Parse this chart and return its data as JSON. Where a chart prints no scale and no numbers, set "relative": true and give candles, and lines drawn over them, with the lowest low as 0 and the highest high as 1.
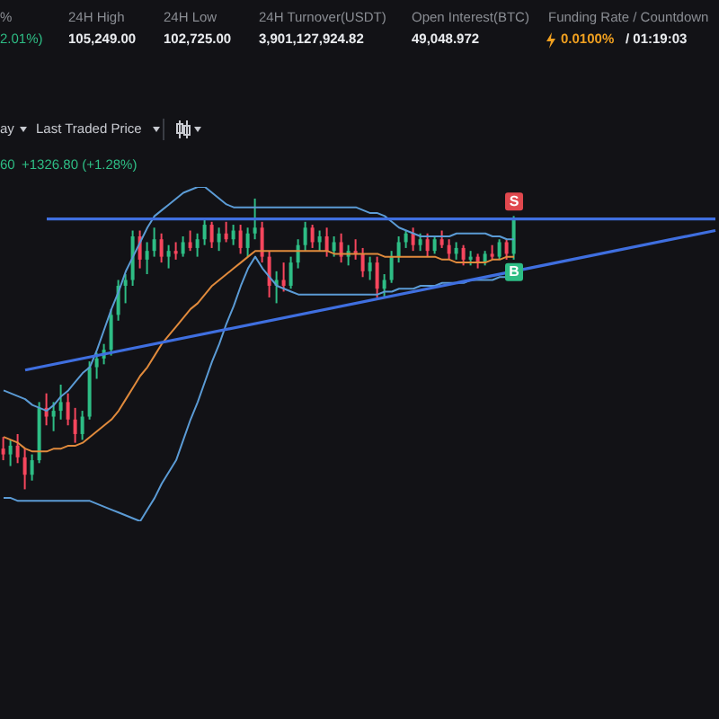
{
  "chart_data": {
    "type": "candlestick",
    "relative": true,
    "categories": [
      null,
      null,
      null,
      null,
      null,
      null,
      null,
      null,
      null,
      null,
      null,
      null,
      null,
      null,
      null,
      null,
      null,
      null,
      null,
      null,
      null,
      null,
      null,
      null,
      null,
      null,
      null,
      null,
      null,
      null,
      null,
      null,
      null,
      null,
      null,
      null,
      null,
      null,
      null,
      null,
      null,
      null,
      null,
      null,
      null,
      null,
      null,
      null,
      null,
      null,
      null,
      null,
      null,
      null,
      null,
      null,
      null,
      null,
      null,
      null,
      null,
      null,
      null,
      null,
      null,
      null,
      null,
      null,
      null,
      null,
      null,
      null,
      null,
      null,
      null,
      null,
      null,
      null,
      null,
      null,
      null,
      null,
      null,
      null,
      null,
      null,
      null,
      null,
      null,
      null,
      null,
      null,
      null,
      null,
      null,
      null,
      null,
      null,
      null,
      null
    ],
    "ohlc": [
      [
        0.14,
        0.18,
        0.1,
        0.12
      ],
      [
        0.12,
        0.17,
        0.08,
        0.15
      ],
      [
        0.15,
        0.19,
        0.09,
        0.11
      ],
      [
        0.11,
        0.14,
        0.0,
        0.05
      ],
      [
        0.05,
        0.12,
        0.03,
        0.1
      ],
      [
        0.1,
        0.3,
        0.09,
        0.28
      ],
      [
        0.28,
        0.33,
        0.22,
        0.25
      ],
      [
        0.25,
        0.3,
        0.2,
        0.27
      ],
      [
        0.27,
        0.36,
        0.24,
        0.3
      ],
      [
        0.3,
        0.33,
        0.22,
        0.24
      ],
      [
        0.24,
        0.28,
        0.16,
        0.19
      ],
      [
        0.19,
        0.27,
        0.17,
        0.25
      ],
      [
        0.25,
        0.44,
        0.24,
        0.42
      ],
      [
        0.42,
        0.47,
        0.38,
        0.45
      ],
      [
        0.45,
        0.5,
        0.43,
        0.48
      ],
      [
        0.48,
        0.62,
        0.46,
        0.6
      ],
      [
        0.6,
        0.72,
        0.58,
        0.7
      ],
      [
        0.7,
        0.74,
        0.64,
        0.72
      ],
      [
        0.72,
        0.89,
        0.7,
        0.87
      ],
      [
        0.87,
        0.89,
        0.76,
        0.79
      ],
      [
        0.79,
        0.85,
        0.74,
        0.82
      ],
      [
        0.82,
        0.9,
        0.8,
        0.86
      ],
      [
        0.86,
        0.88,
        0.78,
        0.8
      ],
      [
        0.8,
        0.84,
        0.76,
        0.82
      ],
      [
        0.82,
        0.85,
        0.79,
        0.81
      ],
      [
        0.81,
        0.87,
        0.8,
        0.85
      ],
      [
        0.85,
        0.89,
        0.82,
        0.83
      ],
      [
        0.83,
        0.88,
        0.8,
        0.86
      ],
      [
        0.86,
        0.93,
        0.84,
        0.91
      ],
      [
        0.91,
        0.92,
        0.83,
        0.85
      ],
      [
        0.85,
        0.9,
        0.82,
        0.88
      ],
      [
        0.88,
        0.92,
        0.85,
        0.86
      ],
      [
        0.86,
        0.91,
        0.84,
        0.89
      ],
      [
        0.89,
        0.91,
        0.81,
        0.83
      ],
      [
        0.83,
        0.9,
        0.8,
        0.88
      ],
      [
        0.88,
        1.0,
        0.86,
        0.9
      ],
      [
        0.9,
        0.92,
        0.78,
        0.8
      ],
      [
        0.8,
        0.82,
        0.66,
        0.7
      ],
      [
        0.7,
        0.75,
        0.64,
        0.72
      ],
      [
        0.72,
        0.78,
        0.68,
        0.7
      ],
      [
        0.7,
        0.8,
        0.69,
        0.78
      ],
      [
        0.78,
        0.86,
        0.76,
        0.84
      ],
      [
        0.84,
        0.92,
        0.82,
        0.9
      ],
      [
        0.9,
        0.91,
        0.83,
        0.85
      ],
      [
        0.85,
        0.89,
        0.82,
        0.87
      ],
      [
        0.87,
        0.9,
        0.8,
        0.82
      ],
      [
        0.82,
        0.87,
        0.8,
        0.85
      ],
      [
        0.85,
        0.88,
        0.78,
        0.8
      ],
      [
        0.8,
        0.84,
        0.77,
        0.82
      ],
      [
        0.82,
        0.86,
        0.79,
        0.81
      ],
      [
        0.81,
        0.83,
        0.73,
        0.75
      ],
      [
        0.75,
        0.8,
        0.72,
        0.78
      ],
      [
        0.78,
        0.8,
        0.66,
        0.69
      ],
      [
        0.69,
        0.74,
        0.66,
        0.72
      ],
      [
        0.72,
        0.82,
        0.71,
        0.8
      ],
      [
        0.8,
        0.87,
        0.78,
        0.85
      ],
      [
        0.85,
        0.89,
        0.83,
        0.88
      ],
      [
        0.88,
        0.9,
        0.82,
        0.84
      ],
      [
        0.84,
        0.88,
        0.82,
        0.86
      ],
      [
        0.86,
        0.88,
        0.8,
        0.82
      ],
      [
        0.82,
        0.87,
        0.81,
        0.86
      ],
      [
        0.86,
        0.89,
        0.83,
        0.84
      ],
      [
        0.84,
        0.86,
        0.79,
        0.81
      ],
      [
        0.81,
        0.85,
        0.79,
        0.83
      ],
      [
        0.83,
        0.84,
        0.77,
        0.79
      ],
      [
        0.79,
        0.82,
        0.77,
        0.8
      ],
      [
        0.8,
        0.81,
        0.76,
        0.78
      ],
      [
        0.78,
        0.82,
        0.77,
        0.81
      ],
      [
        0.81,
        0.84,
        0.79,
        0.8
      ],
      [
        0.8,
        0.86,
        0.79,
        0.85
      ],
      [
        0.85,
        0.86,
        0.79,
        0.81
      ],
      [
        0.81,
        0.94,
        0.79,
        0.93
      ],
      null,
      null,
      null,
      null,
      null,
      null,
      null,
      null,
      null,
      null,
      null,
      null,
      null,
      null,
      null,
      null,
      null,
      null,
      null,
      null,
      null,
      null,
      null,
      null,
      null,
      null,
      null,
      null
    ],
    "colors": [
      "#f6465d",
      "#2ebd85",
      "#f6465d",
      "#f6465d",
      "#2ebd85",
      "#2ebd85",
      "#f6465d",
      "#2ebd85",
      "#2ebd85",
      "#f6465d",
      "#f6465d",
      "#2ebd85",
      "#2ebd85",
      "#2ebd85",
      "#2ebd85",
      "#2ebd85",
      "#2ebd85",
      "#2ebd85",
      "#2ebd85",
      "#f6465d",
      "#2ebd85",
      "#2ebd85",
      "#f6465d",
      "#2ebd85",
      "#f6465d",
      "#2ebd85",
      "#f6465d",
      "#2ebd85",
      "#2ebd85",
      "#f6465d",
      "#2ebd85",
      "#f6465d",
      "#2ebd85",
      "#f6465d",
      "#2ebd85",
      "#2ebd85",
      "#f6465d",
      "#f6465d",
      "#2ebd85",
      "#f6465d",
      "#2ebd85",
      "#2ebd85",
      "#2ebd85",
      "#f6465d",
      "#2ebd85",
      "#f6465d",
      "#2ebd85",
      "#f6465d",
      "#2ebd85",
      "#f6465d",
      "#f6465d",
      "#2ebd85",
      "#f6465d",
      "#2ebd85",
      "#2ebd85",
      "#2ebd85",
      "#2ebd85",
      "#f6465d",
      "#2ebd85",
      "#f6465d",
      "#2ebd85",
      "#f6465d",
      "#f6465d",
      "#2ebd85",
      "#f6465d",
      "#2ebd85",
      "#f6465d",
      "#2ebd85",
      "#f6465d",
      "#2ebd85",
      "#f6465d",
      "#2ebd85",
      null,
      null,
      null,
      null,
      null,
      null,
      null,
      null,
      null,
      null,
      null,
      null,
      null,
      null,
      null,
      null,
      null,
      null,
      null,
      null,
      null,
      null,
      null,
      null,
      null,
      null,
      null,
      null
    ],
    "series": [
      {
        "type": "line",
        "color": "#5b9bd5",
        "values": [
          0.34,
          0.33,
          0.32,
          0.31,
          0.29,
          0.28,
          0.27,
          0.29,
          0.32,
          0.34,
          0.37,
          0.4,
          0.42,
          0.48,
          0.55,
          0.62,
          0.68,
          0.75,
          0.8,
          0.85,
          0.9,
          0.94,
          0.96,
          0.98,
          1.0,
          1.02,
          1.03,
          1.04,
          1.04,
          1.02,
          1.0,
          0.98,
          0.97,
          0.97,
          0.97,
          0.97,
          0.97,
          0.97,
          0.97,
          0.97,
          0.97,
          0.97,
          0.97,
          0.97,
          0.97,
          0.97,
          0.97,
          0.97,
          0.97,
          0.97,
          0.96,
          0.95,
          0.95,
          0.94,
          0.92,
          0.9,
          0.89,
          0.88,
          0.87,
          0.87,
          0.87,
          0.87,
          0.87,
          0.88,
          0.88,
          0.88,
          0.88,
          0.88,
          0.87,
          0.87,
          0.86,
          0.86,
          null,
          null,
          null,
          null,
          null,
          null,
          null,
          null,
          null,
          null,
          null,
          null,
          null,
          null,
          null,
          null,
          null,
          null,
          null,
          null,
          null,
          null,
          null,
          null,
          null,
          null,
          null,
          null
        ]
      },
      {
        "type": "line",
        "color": "#5b9bd5",
        "values": [
          -0.03,
          -0.03,
          -0.04,
          -0.04,
          -0.04,
          -0.04,
          -0.04,
          -0.04,
          -0.04,
          -0.04,
          -0.04,
          -0.04,
          -0.04,
          -0.05,
          -0.06,
          -0.07,
          -0.08,
          -0.09,
          -0.1,
          -0.11,
          -0.07,
          -0.03,
          0.02,
          0.06,
          0.1,
          0.17,
          0.24,
          0.3,
          0.37,
          0.44,
          0.5,
          0.57,
          0.63,
          0.7,
          0.76,
          0.8,
          0.76,
          0.73,
          0.7,
          0.69,
          0.68,
          0.67,
          0.67,
          0.67,
          0.67,
          0.67,
          0.67,
          0.67,
          0.67,
          0.67,
          0.67,
          0.67,
          0.67,
          0.68,
          0.68,
          0.69,
          0.69,
          0.69,
          0.7,
          0.7,
          0.7,
          0.71,
          0.71,
          0.71,
          0.71,
          0.72,
          0.72,
          0.72,
          0.72,
          0.73,
          0.73,
          null,
          null,
          null,
          null,
          null,
          null,
          null,
          null,
          null,
          null,
          null,
          null,
          null,
          null,
          null,
          null,
          null,
          null,
          null,
          null,
          null,
          null,
          null,
          null,
          null,
          null,
          null,
          null,
          null
        ]
      },
      {
        "type": "line",
        "color": "#e08a3c",
        "values": [
          0.18,
          0.17,
          0.16,
          0.14,
          0.13,
          0.13,
          0.13,
          0.14,
          0.14,
          0.15,
          0.15,
          0.16,
          0.18,
          0.2,
          0.22,
          0.24,
          0.27,
          0.31,
          0.35,
          0.39,
          0.42,
          0.46,
          0.5,
          0.53,
          0.56,
          0.59,
          0.62,
          0.64,
          0.67,
          0.7,
          0.72,
          0.74,
          0.76,
          0.78,
          0.8,
          0.82,
          0.82,
          0.82,
          0.82,
          0.82,
          0.82,
          0.82,
          0.82,
          0.82,
          0.82,
          0.82,
          0.81,
          0.81,
          0.81,
          0.81,
          0.81,
          0.81,
          0.81,
          0.8,
          0.8,
          0.8,
          0.8,
          0.8,
          0.8,
          0.8,
          0.8,
          0.79,
          0.79,
          0.78,
          0.78,
          0.78,
          0.78,
          0.78,
          0.79,
          0.79,
          0.8,
          0.8,
          null,
          null,
          null,
          null,
          null,
          null,
          null,
          null,
          null,
          null,
          null,
          null,
          null,
          null,
          null,
          null,
          null,
          null,
          null,
          null,
          null,
          null,
          null,
          null,
          null,
          null,
          null,
          null
        ]
      },
      {
        "type": "line",
        "color": "#3f6fe0",
        "values": [
          null,
          null,
          null,
          0.41,
          null,
          null,
          null,
          null,
          null,
          null,
          null,
          null,
          null,
          null,
          null,
          null,
          null,
          null,
          null,
          null,
          null,
          null,
          null,
          null,
          null,
          null,
          null,
          null,
          null,
          null,
          null,
          null,
          null,
          null,
          null,
          null,
          null,
          null,
          null,
          null,
          null,
          null,
          null,
          null,
          null,
          null,
          null,
          null,
          null,
          null,
          null,
          null,
          null,
          null,
          null,
          null,
          null,
          null,
          null,
          null,
          null,
          null,
          null,
          null,
          null,
          null,
          null,
          null,
          null,
          null,
          null,
          null,
          null,
          null,
          null,
          null,
          null,
          null,
          null,
          null,
          null,
          null,
          null,
          null,
          null,
          null,
          null,
          null,
          null,
          null,
          null,
          null,
          null,
          null,
          null,
          null,
          null,
          null,
          null,
          0.89
        ]
      },
      {
        "type": "line",
        "color": "#3f6fe0",
        "values": [
          null,
          null,
          null,
          null,
          null,
          null,
          0.93,
          null,
          null,
          null,
          null,
          null,
          null,
          null,
          null,
          null,
          null,
          null,
          null,
          null,
          null,
          null,
          null,
          null,
          null,
          null,
          null,
          null,
          null,
          null,
          null,
          null,
          null,
          null,
          null,
          null,
          null,
          null,
          null,
          null,
          null,
          null,
          null,
          null,
          null,
          null,
          null,
          null,
          null,
          null,
          null,
          null,
          null,
          null,
          null,
          null,
          null,
          null,
          null,
          null,
          null,
          null,
          null,
          null,
          null,
          null,
          null,
          null,
          null,
          null,
          null,
          null,
          null,
          null,
          null,
          null,
          null,
          null,
          null,
          null,
          null,
          null,
          null,
          null,
          null,
          null,
          null,
          null,
          null,
          null,
          null,
          null,
          null,
          null,
          null,
          null,
          null,
          null,
          null,
          0.93
        ]
      }
    ],
    "annotations": [
      "%",
      "24H High",
      "24H Low",
      "24H Turnover(USDT)",
      "Open Interest(BTC)",
      "Funding Rate / Countdown",
      "2.01%)",
      "105,249.00",
      "102,725.00",
      "3,901,127,924.82",
      "49,048.972",
      "0.0100%",
      "/ 01:19:03",
      "ay",
      "Last Traded Price",
      "60",
      "+1326.80 (+1.28%)",
      {
        "text": "S",
        "y": 0.94
      },
      {
        "text": "B",
        "y": 0.79
      }
    ]
  }
}
